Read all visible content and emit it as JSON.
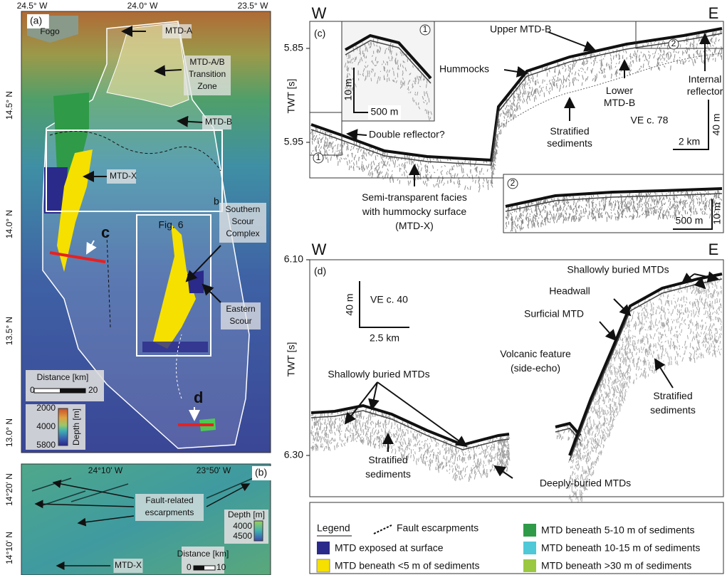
{
  "panel_a": {
    "label": "(a)",
    "lon_labels": [
      "24.5° W",
      "24.0° W",
      "23.5° W"
    ],
    "lat_labels": [
      "14.5° N",
      "14.0° N",
      "13.5° N",
      "13.0° N"
    ],
    "annotations": {
      "fogo": "Fogo",
      "mtd_a": "MTD-A",
      "transition": [
        "MTD-A/B",
        "Transition",
        "Zone"
      ],
      "mtd_b": "MTD-B",
      "mtd_x": "MTD-X",
      "box_b": "b",
      "line_c": "c",
      "fig6": "Fig. 6",
      "southern_scour": [
        "Southern",
        "Scour",
        "Complex"
      ],
      "eastern_scour": [
        "Eastern",
        "Scour"
      ],
      "line_d": "d"
    },
    "scale_bar": {
      "title": "Distance [km]",
      "min": "0",
      "max": "20"
    },
    "depth_bar": {
      "title": "Depth [m]",
      "ticks": [
        "2000",
        "4000",
        "5800"
      ]
    }
  },
  "panel_b": {
    "label": "(b)",
    "lon_labels": [
      "24°10' W",
      "23°50' W"
    ],
    "lat_labels": [
      "14°20' N",
      "14°10' N"
    ],
    "annotations": {
      "faults": [
        "Fault-related",
        "escarpments"
      ],
      "mtd_x": "MTD-X"
    },
    "depth_bar": {
      "title": "Depth [m]",
      "ticks": [
        "4000",
        "4500"
      ]
    },
    "scale_bar": {
      "title": "Distance [km]",
      "min": "0",
      "max": "10"
    }
  },
  "panel_c": {
    "label": "(c)",
    "west": "W",
    "east": "E",
    "y_axis_title": "TWT [s]",
    "y_labels": [
      "5.85",
      "5.95"
    ],
    "annotations": {
      "upper_mtd_b": "Upper MTD-B",
      "hummocks": "Hummocks",
      "lower_mtd_b": [
        "Lower",
        "MTD-B"
      ],
      "internal_reflector": [
        "Internal",
        "reflector"
      ],
      "stratified": [
        "Stratified",
        "sediments"
      ],
      "double_reflector": "Double reflector?",
      "semi_transparent": [
        "Semi-transparent facies",
        "with hummocky surface",
        "(MTD-X)"
      ]
    },
    "scale": {
      "ve": "VE c. 78",
      "vertical": "40 m",
      "horizontal": "2 km"
    },
    "inset_1": {
      "marker": "1",
      "vertical": "10 m",
      "horizontal": "500 m"
    },
    "inset_2": {
      "marker": "2",
      "vertical": "10 m",
      "horizontal": "500 m"
    }
  },
  "panel_d": {
    "label": "(d)",
    "west": "W",
    "east": "E",
    "y_axis_title": "TWT [s]",
    "y_labels": [
      "6.10",
      "6.30"
    ],
    "annotations": {
      "shallow_right": "Shallowly buried MTDs",
      "headwall": "Headwall",
      "surficial": "Surficial MTD",
      "volcanic": [
        "Volcanic feature",
        "(side-echo)"
      ],
      "shallow_left": "Shallowly buried MTDs",
      "stratified_left": [
        "Stratified",
        "sediments"
      ],
      "stratified_right": [
        "Stratified",
        "sediments"
      ],
      "deeply_buried": "Deeply-buried MTDs"
    },
    "scale": {
      "vertical": "40 m",
      "ve": "VE c. 40",
      "horizontal": "2.5 km"
    }
  },
  "legend": {
    "title": "Legend",
    "items": [
      "Fault escarpments",
      "MTD exposed at surface",
      "MTD beneath <5 m of sediments",
      "MTD beneath 5-10 m of sediments",
      "MTD beneath 10-15 m of sediments",
      "MTD beneath >30 m of sediments"
    ]
  }
}
